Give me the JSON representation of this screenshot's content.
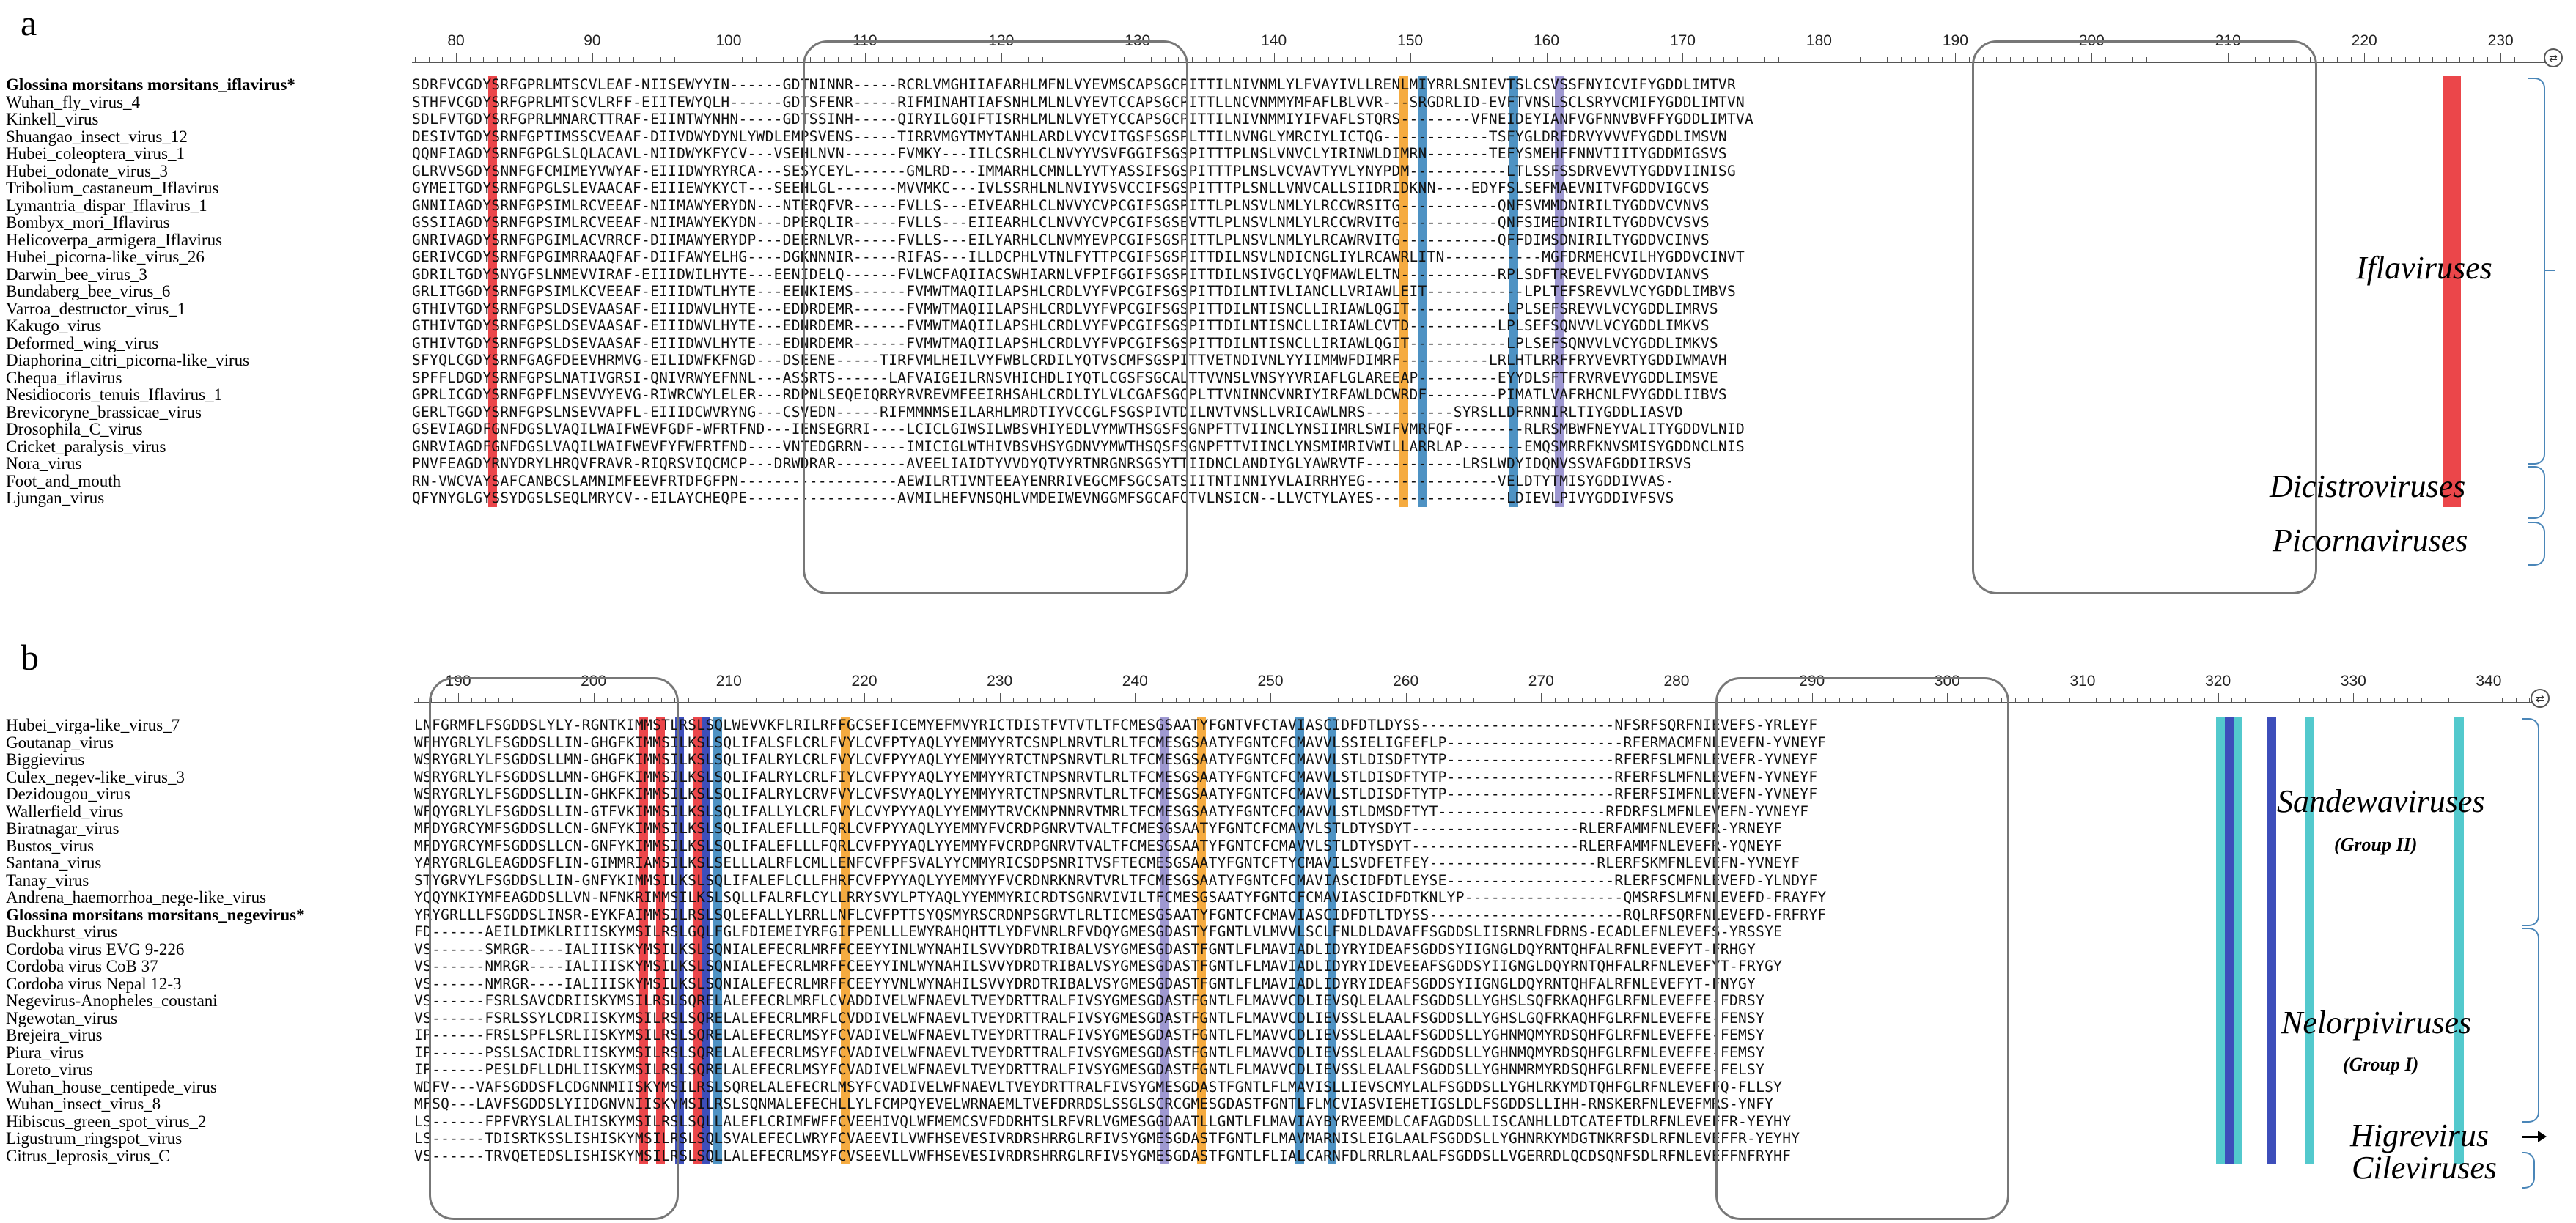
{
  "panel_a": {
    "letter": "a",
    "ruler_labels": [
      "80",
      "90",
      "100",
      "110",
      "120",
      "130",
      "140",
      "150",
      "160",
      "170",
      "180",
      "190",
      "200",
      "210",
      "220",
      "230"
    ],
    "names": [
      "Glossina morsitans morsitans_iflavirus*",
      "Wuhan_fly_virus_4",
      "Kinkell_virus",
      "Shuangao_insect_virus_12",
      "Hubei_coleoptera_virus_1",
      "Hubei_odonate_virus_3",
      "Tribolium_castaneum_Iflavirus",
      "Lymantria_dispar_Iflavirus_1",
      "Bombyx_mori_Iflavirus",
      "Helicoverpa_armigera_Iflavirus",
      "Hubei_picorna-like_virus_26",
      "Darwin_bee_virus_3",
      "Bundaberg_bee_virus_6",
      "Varroa_destructor_virus_1",
      "Kakugo_virus",
      "Deformed_wing_virus",
      "Diaphorina_citri_picorna-like_virus",
      "Chequa_iflavirus",
      "Nesidiocoris_tenuis_Iflavirus_1",
      "Brevicoryne_brassicae_virus",
      "Drosophila_C_virus",
      "Cricket_paralysis_virus",
      "Nora_virus",
      "Foot_and_mouth",
      "Ljungan_virus"
    ],
    "seqs": [
      "SDRFVCGDYSRFGPRLMTSCVLEAF-NIISEWYYIN------GDTNINNR-----RCRLVMGHIIAFARHLMFNLVYEVMSCAPSGCPITTILNIVNMLYLFVAYIVLLRENLMIYRRLSNIEVTSLCSVSSFNYICVIFYGDDLIMTVR",
      "STHFVCGDYSRFGPRLMTSCVLRFF-EIITEWYQLH------GDTSFENR-----RIFMINAHTIAFSNHLMLNLVYEVTCCAPSGCPITTLLNCVNMMYMFAFLBLVVR---SRGDRLID-EVFTVNSLSCLSRYVCMIFYGDDLIMTVN",
      "SDLFVTGDYSRFGPRLMNARCTTRAF-EIINTWYNHN-----GDTSSINH-----QIRYILGQIFTISRHLMLNLVYETYCCAPSGCPITTILNIVNMMIYIFVAFLSTQRS--------VFNEIDEYIANFVGFNNVBVFFYGDDLIMTVA",
      "DESIVTGDYSRNFGPTIMSSCVEAAF-DIIVDWYDYNLYWDLEMPSVENS-----TIRRVMGYTMYTANHLARDLVYCVITGSFSGSPLTTILNVNGLYMRCIYLICTQG------------TSFYGLDRFDRVYVVVFYGDDLIMSVN",
      "QQNFIAGDYSRNFGPGLSLQLACAVL-NIIDWYKFYCV---VSEHLNVN------FVMKY---IILCSRHLCLNVYYVSVFGGIFSGSPITTTPLNSLVNVCLYIRINWLDIMRN-------TEFYSMEHFFNNVTIITYGDDMIGSVS",
      "GLRVVSGDYSNNFGFCMIMEYVWYAF-EIIIDWYRYRCA---SESYCEYL------GMLRD---IMMARHLCMNLLYVTYASSIFSGSPITTTPLNSLVCVAVTYVLYNYPDM-----------LTLSSFSSDRVEVVTYGDDVIINISG",
      "GYMEITGDYSRNFGPGLSLEVAACAF-EIIIEWYKYCT---SEEHLGL-------MVVMKC---IVLSSRHLNLNVIYVSVCCIFSGSPITTTPLSNLLVNVCALLSIIDRIDKNN----EDYFSLSEFMAEVNITVFGDDVIGCVS",
      "GNNIIAGDYSRNFGPSIMLRCVEEAF-NIIMAWYERYDN---NTERQFVR-----FVLLS---EIVEARHLCLNVVYCVPCGIFSGSPITTLPLNSVLNMLYLRCCWRSITG-----------QNFSVMMDNIRILTYGDDVCVNVS",
      "GSSIIAGDYSRNFGPSIMLRCVEEAF-NIIMAWYEKYDN---DPERQLIR-----FVLLS---EIIEARHLCLNVVYCVPCGIFSGSEVTTLPLNSVLNMLYLRCCWRVITG-----------QNFSIMEDNIRILTYGDDVCVSVS",
      "GNRIVAGDYSRNFGPGIMLACVRRCF-DIIMAWYERYDP---DEERNLVR-----FVLLS---EILYARHLCLNVMYEVPCGIFSGSPITTLPLNSVLNMLYLRCAWRVITG-----------QFFDIMSDNIRILTYGDDVCINVS",
      "GERIVCGDYSRNFGPGIMRRAAQFAF-DIIFAWYELHG----DGKNNNIR-----RIFAS---ILLDCPHLVTNLFYTTPCGIFSGSPITTDILNSVLNDICNGLIYLRCAWRLITN-----------MGFDRMEHCVILHYGDDVCINVT",
      "GDRILTGDYSNYGFSLNMEVVIRAF-EIIIDWILHYTE---EENIDELQ------FVLWCFAQIIACSWHIARNLVFPIFGGIFSGSPITTDILNSIVGCLYQFMAWLELTN-----------RPLSDFTREVELFVYGDDVIANVS",
      "GRLITGGDYSRNFGPSIMLKCVEEAF-EIIIDWTLHYTE---EENKIEMS------FVMWTMAQIILAPSHLCRDLVYFVPCGIFSGSPITTDILNTIVLIANCLLVRIAWLEIT-----------LPLTEFSREVVLVCYGDDLIMBVS",
      "GTHIVTGDYSRNFGPSLDSEVAASAF-EIIIDWVLHYTE---EDDRDEMR------FVMWTMAQIILAPSHLCRDLVYFVPCGIFSGSPITTDILNTISNCLLIRIAWLQGIT-----------LPLSEFSREVVLVCYGDDLIMRVS",
      "GTHIVTGDYSRNFGPSLDSEVAASAF-EIIIDWVLHYTE---EDNRDEMR------FVMWTMAQIILAPSHLCRDLVYFVPCGIFSGSPITTDILNTISNCLLIRIAWLCVTD----------LPLSEFSQNVVLVCYGDDLIMKVS",
      "GTHIVTGDYSRNFGPSLDSEVAASAF-EIIIDWVLHYTE---EDNRDEMR------FVMWTMAQIILAPSHLCRDLVYFVPCGIFSGSPITTDILNTISNCLLIRIAWLQGIT-----------LPLSEFSQNVVLVCYGDDLIMKVS",
      "SFYQLCGDYSRNFGAGFDEEVHRMVG-EILIDWFKFNGD---DSEENE-----TIRFVMLHEILVYFWBLCRDILYQTVSCMFSGSPITTVETNDIVNLYYIIMMWFDIMRF----------LRLHTLRRFFRYVEVRTYGDDIWMAVH",
      "SPFFLDGDYSRNFGPSLNATIVGRSI-QNIVRWYEFNNL---ASSRTS------LAFVAIGEILRNSVHICHDLIYQTLCGSFSGCALTTVVNSLVNSYYVRIAFLGLAREEAP---------EYYDLSFTFRVRVEVYGDDLIMSVE",
      "GPRLICGDYSRNFGPFLNSEVVYEVG-RIWRCWYLELER---RDPNLSEQEIQRRYRVREVMFEEIRHSAHLCRDLIYLVLCGAFSGCPLTTVNINNCVNRIYIRFAWLDCWRDF--------PIMATLVAFRHCNLFVYGDDLIIBVS",
      "GERLTGGDYSRNFGPSLNSEVVAPFL-EIIIDCWVRYNG---CSVEDN-----RIFMMNMSEILARHLMRDTIYVCCGLFSGSPIVTDILNVTVNSLLVRICAWLNRS----------SYRSLLDFRNNIRLTIYGDDLIASVD",
      "GSEVIAGDFGNFDGSLVAQILWAIFWEVFGDF-WFRTFND---IENSEGRRI----LCICLGIWSILWBSVHIYEDLVYMWTHSGSFSGNPFTTVIINCLYNSIIMRLSWIFVMRFQF--------RLRSMBWFNEYVALITYGDDVLNID",
      "GNRVIAGDFGNFDGSLVAQILWAIFWEVFYFWFRTFND----VNTEDGRRN-----IMICIGLWTHIVBSVHSYGDNVYMWTHSQSFSGNPFTTVIINCLYNSMIMRIVWILLARRLAP-------EMQSMRRFKNVSMISYGDDNCLNIS",
      "PNVFEAGDYRNYDRYLHRQVFRAVR-RIQRSVIQCMCP---DRWDRAR--------AVEELIAIDTYVVDYQTVYRTNRGNRSGSYTTIIDNCLANDIYGLYAWRVTF-----------LRSLWDYIDQNVSSVAFGDDIIRSVS",
      "RN-VWCVAYSAFCANBCSLAMNIMFEEVFRTDFGFPN------------------AEWILRTIVNTEEAYENRRIVEGCMFSGCSATSIITNTINNIYVLAIRRHYEG---------------VELDTYTMISYGDDIVVAS-",
      "QFYNYGLGYSSYDGSLSEQLMRYCV--EILAYCHEQPE-----------------AVMILHEFVNSQHLVMDEIWEVNGGMFSGCAFCTVLNSICN--LLVCTYLAYES---------------LDIEVLPIVYGDDIVFSVS"
    ],
    "families": {
      "iflaviruses": "Iflaviruses",
      "dicistroviruses": "Dicistroviruses",
      "picornaviruses": "Picornaviruses"
    }
  },
  "panel_b": {
    "letter": "b",
    "ruler_labels": [
      "190",
      "200",
      "210",
      "220",
      "230",
      "240",
      "250",
      "260",
      "270",
      "280",
      "290",
      "300",
      "310",
      "320",
      "330",
      "340"
    ],
    "names": [
      "Hubei_virga-like_virus_7",
      "Goutanap_virus",
      "Biggievirus",
      "Culex_negev-like_virus_3",
      "Dezidougou_virus",
      "Wallerfield_virus",
      "Biratnagar_virus",
      "Bustos_virus",
      "Santana_virus",
      "Tanay_virus",
      "Andrena_haemorrhoa_nege-like_virus",
      "Glossina morsitans morsitans_negevirus*",
      "Buckhurst_virus",
      "Cordoba virus EVG 9-226",
      "Cordoba virus CoB 37",
      "Cordoba virus Nepal 12-3",
      "Negevirus-Anopheles_coustani",
      "Ngewotan_virus",
      "Brejeira_virus",
      "Piura_virus",
      "Loreto_virus",
      "Wuhan_house_centipede_virus",
      "Wuhan_insect_virus_8",
      "Hibiscus_green_spot_virus_2",
      "Ligustrum_ringspot_virus",
      "Citrus_leprosis_virus_C"
    ],
    "seqs": [
      "LNFGRMFLFSGDDSLYLY-RGNTKIMMSTLRSLSQLWEVVKFLRILRFFGCSEFICEMYEFMVYRICTDISTFVTVTLTFCMESGSAATYFGNTVFCTAVIASCIDFDTLDYSS----------------------NFSRFSQRFNIEVEFS-YRLEYF",
      "WFHYGRLYLFSGDDSLLIN-GHGFKIMMSILKSLSQLIFALSFLCRLFVYLCVFPTYAQLYYEMMYYRTCSNPLNRVTLRLTFCMESGSAATYFGNTCFCMAVVLSSIELIGFEFLP--------------------RFERMACMFNLEVEFN-YVNEYF",
      "WSRYGRLYLFSGDDSLLMN-GHGFKIMMSILKSLSQLIFALRYLCRLFVYLCVFPYYAQLYYEMMYYRTCTNPSNRVTLRLTFCMESGSAATYFGNTCFCMAVVLSTLDISDFTYTP-------------------RFERFSLMFNLEVEFR-YVNEYF",
      "WSRYGRLYLFSGDDSLLMN-GHGFKIMMSILKSLSQLIFALRYLCRLFIYLCVFPYYAQLYYEMMYYRTCTNPSNRVTLRLTFCMESGSAATYFGNTCFCMAVVLSTLDISDFTYTP-------------------RFERFSLMFNLEVEFN-YVNEYF",
      "WSRYGRLYLFSGDDSLLIN-GHKFKIMMSILKSLSQLIFALRYLCRVFVYLCVFSVYAQLYYEMMYYRTCTNPSNRVTLRLTFCMESGSAATYFGNTCFCMAVVLSTLDISDFTYTP-------------------RFERFSIMFNLEVEFN-YVNEYF",
      "WFQYGRLYLFSGDDSLLIN-GTFVKIMMSILKSLSQLIFALLYLCRLFVYLCVYPYYAQLYYEMMYTRVCKNPNNRVTMRLTFCMESGSAATYFGNTCFCMAVVLSTLDMSDFTYT-------------------RFDRFSLMFNLEVEFN-YVNEYF",
      "MFDYGRCYMFSGDDSLLCN-GNFYKIMMSILKSLSQLIFALEFLLLFQRLCVFPYYAQLYYEMMYFVCRDPGNRVTVALTFCMESGSAATYFGNTCFCMAVVLSTLDTYSDYT-------------------RLERFAMMFNLEVEFR-YRNEYF",
      "MFDYGRCYMFSGDDSLLCN-GNFYKIMMSILKSLSQLIFALEFLLLFQRLCVFPYYAQLYYEMMYFVCRDPGNRVTVALTFCMESGSAATYFGNTCFCMAVVLSTLDTYSDYT-------------------RLERFAMMFNLEVEFR-YQNEYF",
      "YARYGRLGLEAGDDSFLIN-GIMMRIAMSILKSLSELLLALRFLCMLLENFCVFPFSVALYYCMMYRICSDPSNRITVSFTECMESGSAATYFGNTCFTYCMAVILSVDFETFEY-------------------RLERFSKMFNLEVEFN-YVNEYF",
      "STYGRVYLFSGDDSLLIN-GNFYKIMMSILKSLSQLIFALEFLCLLFHRFCVFPYYAQLYYEMMYYFVCRDNRKNRVTVRLTFCMESGSAATYFGNTCFCMAVIASCIDFDTLEYSE-------------------RLERFSCMFNLEVEFD-YLNDYF",
      "YQQYNKIYMFEAGDDSLLVN-NFNKRIMMSILKSLSQLLFALRFLCYLLRRYSVYLPTYAQLYYEMMYRICRDTSGNRVIVILTFCMESGSAATYFGNTCFCMAVIASCIDFDTKNLYP------------------QMSRFSLMFNLEVEFD-FRAYFY",
      "YRYGRLLLFSGDDSLINSR-EYKFAIMMSILRSLSQLEFALLYLRRLLNFLCVFPTTSYQSMYRSCRDNPSGRVTLRLTICMESGSAATYFGNTCFCMAVIASCIDFDTLTDYSS----------------------RQLRFSQRFNLEVEFD-FRFRYF",
      "FD------AEILDIMKLRIIISKYMSILRSLGQLFGLFDIEMEIYRFGIFPENLLLEWYRAHQHTTLYDFVNRLRFVDQYGMESGDASTYFGNTLVLMVVLSCLFNLDLDAVAFFSGDDSLIISRNRLFDRNS-ECADLEFNLEVEFS-YRSSYE",
      "VS------SMRGR----IALIIISKYMSILKSLSQNIALEFECRLMRFFCEEYYINLWYNAHILSVVYDRDTRIBALVSYGMESGDASTFGNTLFLMAVIADLIDYRYIDEAFSGDDSYIIGNGLDQYRNTQHFALRFNLEVEFYT-FRHGY",
      "VS------NMRGR----IALIIISKYMSILKSLSQNIALEFECRLMRFFCEEYYINLWYNAHILSVVYDRDTRIBALVSYGMESGDASTFGNTLFLMAVIADLIDYRYIDEVEEAFSGDDSYIIGNGLDQYRNTQHFALRFNLEVEFYT-FRYGY",
      "VS------NMRGR----IALIIISKYMSILKSLSQNIALEFECRLMRFFCEEYYVNLWYNAHILSVVYDRDTRIBALVSYGMESGDASTFGNTLFLMAVIADLIDYRYIDEAFSGDDSYIIGNGLDQYRNTQHFALRFNLEVEFYT-FNYGY",
      "VS------FSRLSAVCDRIISKYMSILRSLSQRELALEFECRLMRFLCVADDIVELWFNAEVLTVEYDRTTRALFIVSYGMESGDASTFGNTLFLMAVVCDLIEVSQLELAALFSGDDSLLYGHSLSQFRKAQHFGLRFNLEVEFFE-FDRSY",
      "VS------FSRLSSYLCDRIISKYMSILRSLSQRELALEFECRLMRFLCVDDIVELWFNAEVLTVEYDRTTRALFIVSYGMESGDASTFGNTLFLMAVVCDLIEVSSLELAALFSGDDSLLYGHSLGQFRKAQHFGLRFNLEVEFFE-FENSY",
      "IP------FRSLSPFLSRLIISKYMSILRSLSQRELALEFECRLMSYFCVADIVELWFNAEVLTVEYDRTTRALFIVSYGMESGDASTFGNTLFLMAVVCDLIEVSSLELAALFSGDDSLLYGHNMQMYRDSQHFGLRFNLEVEFFE-FEMSY",
      "IP------PSSLSACIDRLIISKYMSILRSLSQRELALEFECRLMSYFCVADIVELWFNAEVLTVEYDRTTRALFIVSYGMESGDASTFGNTLFLMAVVCDLIEVSSLELAALFSGDDSLLYGHNMQMYRDSQHFGLRFNLEVEFFE-FEMSY",
      "IP------PESLDFLLDHLIISKYMSILRSLSQRELALEFECRLMSYFCVADIVELWFNAEVLTVEYDRTTRALFIVSYGMESGDASTFGNTLFLMAVVCDLIEVSSLELAALFSGDDSLLYGHNMRMYRDSQHFGLRFNLEVEFFE-FELSY",
      "WDFV---VAFSGDDSFLCDGNNMIISKYMSILRSLSQRELALEFECRLMSYFCVADIVELWFNAEVLTVEYDRTTRALFIVSYGMESGDASTFGNTLFLMAVISLLIEVSCMYLALFSGDDSLLYGHLRKYMDTQHFGLRFNLEVEFFQ-FLLSY",
      "MFSQ---LAVFSGDDSLYIIDGNVNIISKYMSILRSLSQNMALEFECHLLYLFCMPQYEVELWRNAEMLTVEFDRRDSLSSGLSCRCGMESGDASTFGNTLFLMCVIASVIEHETIGSLDLFSGDDSLLIHH-RNSKERFNLEVEFMRS-YNFY",
      "LS------FPFVRYSLALIHISKYMSILRSLSQLLALEFLCRIMFWFFCVEEHIVQLWFMEMCSVFDDRHTSLRFVRLVGMESGGDAATLLGNTLFLMAVIAYBYRVEEMDLCAFAGDDSLLISCANHLLDTCATEFTDLRFNLEVEFFR-YEYHY",
      "LS------TDISRTKSSLISHISKYMSILRSLSQLSVALEFECLWRYFCVAEEVILVWFHSEVESIVRDRSHRRGLRFIVSYGMESGDASTFGNTLFLMAVMARNISLEIGLAALFSGDDSLLYGHNRKYMDGTNKRFSDLRFNLEVEFFR-YEYHY",
      "VS------TRVQETEDSLISHISKYMSILRSLSQLLALEFECRLMSYFCVSEEVLLVWFHSEVESIVRDRSHRRGLRFIVSYGMESGDASTFGNTLFLIALCARNFDLRRLRLAALFSGDDSLLVGERRDLQCDSQNFSDLRFNLEVEFFNFRYHF"
    ],
    "families": {
      "sandewaviruses": "Sandewaviruses",
      "sandewaviruses_group": "(Group II)",
      "nelorpiviruses": "Nelorpiviruses",
      "nelorpiviruses_group": "(Group I)",
      "higrevirus": "Higrevirus",
      "cileviruses": "Cileviruses"
    }
  },
  "colors": {
    "red": "#e8262a",
    "orange": "#f39c1e",
    "steelblue": "#2f7fb8",
    "navy": "#1b2fae",
    "teal": "#35c0c4",
    "lavender": "#8d86c9",
    "oval": "#777777",
    "brace": "#4a86b8"
  }
}
